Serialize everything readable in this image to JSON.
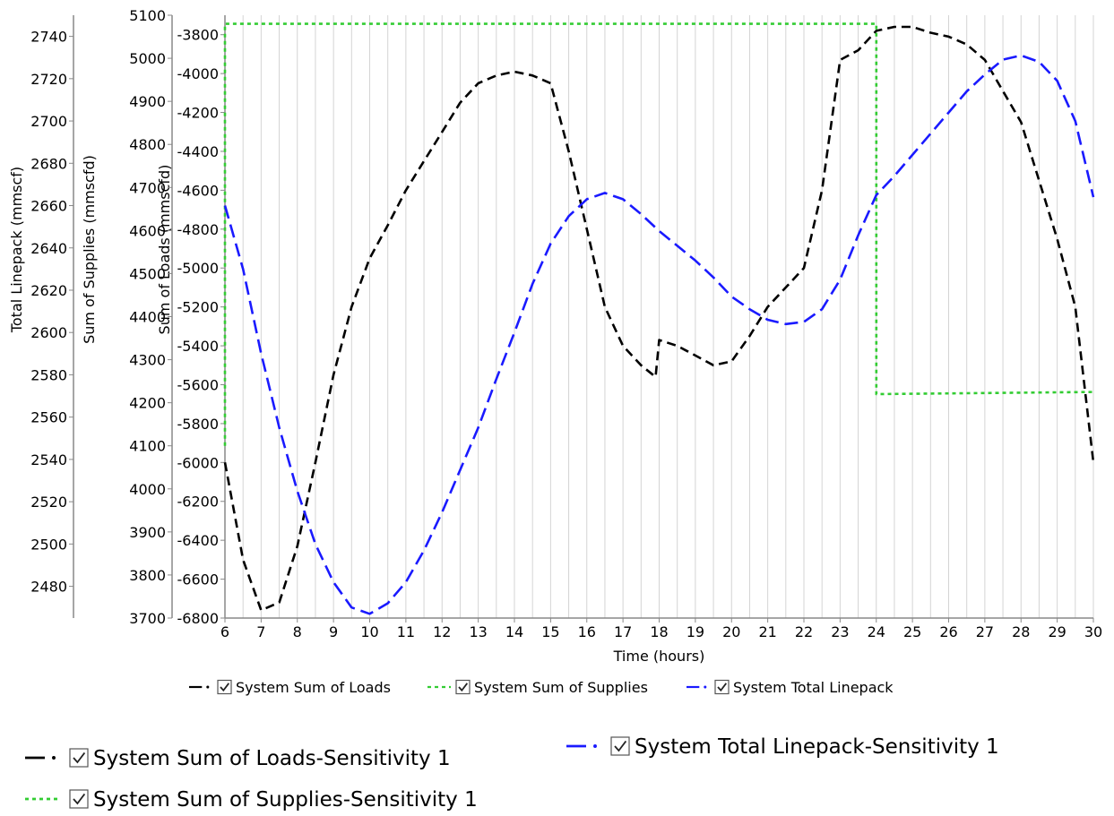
{
  "chart_data": {
    "type": "line",
    "xlabel": "Time (hours)",
    "xlim": [
      6,
      30
    ],
    "x_ticks": [
      6,
      7,
      8,
      9,
      10,
      11,
      12,
      13,
      14,
      15,
      16,
      17,
      18,
      19,
      20,
      21,
      22,
      23,
      24,
      25,
      26,
      27,
      28,
      29,
      30
    ],
    "grid": "vertical",
    "axes": {
      "loads": {
        "label": "Sum of Loads (mmscfd)",
        "min": -6800,
        "max": -3700,
        "ticks": [
          -6800,
          -6600,
          -6400,
          -6200,
          -6000,
          -5800,
          -5600,
          -5400,
          -5200,
          -5000,
          -4800,
          -4600,
          -4400,
          -4200,
          -4000,
          -3800
        ]
      },
      "supplies": {
        "label": "Sum of Supplies (mmscfd)",
        "min": 3700,
        "max": 5100,
        "ticks": [
          3700,
          3800,
          3900,
          4000,
          4100,
          4200,
          4300,
          4400,
          4500,
          4600,
          4700,
          4800,
          4900,
          5000,
          5100
        ]
      },
      "linepack": {
        "label": "Total Linepack (mmscf)",
        "min": 2465,
        "max": 2750,
        "ticks": [
          2480,
          2500,
          2520,
          2540,
          2560,
          2580,
          2600,
          2620,
          2640,
          2660,
          2680,
          2700,
          2720,
          2740
        ]
      }
    },
    "series": [
      {
        "name": "System Sum of Loads",
        "axis": "loads",
        "color": "#000000",
        "dash": "10 6",
        "x": [
          6,
          6.5,
          7,
          7.5,
          8,
          8.5,
          9,
          9.5,
          10,
          10.5,
          11,
          11.5,
          12,
          12.5,
          13,
          13.5,
          14,
          14.5,
          15,
          15.5,
          16,
          16.5,
          17,
          17.5,
          17.9,
          18,
          18.5,
          19,
          19.5,
          20,
          20.5,
          21,
          21.5,
          22,
          22.5,
          23,
          23.5,
          24,
          24.5,
          25,
          25.5,
          26,
          26.5,
          27,
          27.5,
          28,
          28.5,
          29,
          29.5,
          30
        ],
        "y": [
          -6000,
          -6500,
          -6760,
          -6720,
          -6430,
          -6000,
          -5550,
          -5200,
          -4950,
          -4780,
          -4600,
          -4450,
          -4300,
          -4150,
          -4050,
          -4010,
          -3990,
          -4010,
          -4050,
          -4400,
          -4800,
          -5200,
          -5400,
          -5500,
          -5560,
          -5370,
          -5400,
          -5450,
          -5500,
          -5480,
          -5350,
          -5200,
          -5100,
          -5000,
          -4600,
          -3930,
          -3880,
          -3780,
          -3760,
          -3760,
          -3790,
          -3810,
          -3850,
          -3930,
          -4090,
          -4250,
          -4550,
          -4850,
          -5200,
          -6000
        ]
      },
      {
        "name": "System Sum of Supplies",
        "axis": "supplies",
        "color": "#33cc33",
        "dash": "4 4",
        "x": [
          6,
          6,
          24,
          24,
          30
        ],
        "y": [
          4100,
          5080,
          5080,
          4220,
          4225
        ]
      },
      {
        "name": "System Total Linepack",
        "axis": "linepack",
        "color": "#1a1aff",
        "dash": "15 7",
        "x": [
          6,
          6.5,
          7,
          7.5,
          8,
          8.5,
          9,
          9.5,
          10,
          10.5,
          11,
          11.5,
          12,
          12.5,
          13,
          13.5,
          14,
          14.5,
          15,
          15.5,
          16,
          16.5,
          17,
          17.5,
          18,
          18.5,
          19,
          19.5,
          20,
          20.5,
          21,
          21.5,
          22,
          22.5,
          23,
          23.5,
          24,
          24.5,
          25,
          25.5,
          26,
          26.5,
          27,
          27.5,
          28,
          28.5,
          29,
          29.5,
          30
        ],
        "y": [
          2660,
          2630,
          2590,
          2555,
          2525,
          2500,
          2482,
          2470,
          2467,
          2472,
          2482,
          2497,
          2515,
          2535,
          2555,
          2578,
          2600,
          2623,
          2642,
          2655,
          2663,
          2666,
          2663,
          2656,
          2648,
          2641,
          2634,
          2626,
          2617,
          2611,
          2606,
          2604,
          2605,
          2611,
          2625,
          2646,
          2665,
          2674,
          2684,
          2694,
          2704,
          2714,
          2722,
          2729,
          2731,
          2728,
          2719,
          2700,
          2664
        ]
      }
    ],
    "legend_small": [
      {
        "label": "System Sum of Loads",
        "color": "#000000",
        "style": "dash-dot"
      },
      {
        "label": "System Sum of Supplies",
        "color": "#33cc33",
        "style": "dotted"
      },
      {
        "label": "System Total Linepack",
        "color": "#1a1aff",
        "style": "dash-dot"
      }
    ],
    "legend_large": [
      {
        "label": "System Sum of Loads-Sensitivity 1",
        "color": "#000000",
        "style": "dash-dot"
      },
      {
        "label": "System Total Linepack-Sensitivity 1",
        "color": "#1a1aff",
        "style": "dash-dot"
      },
      {
        "label": "System Sum of Supplies-Sensitivity 1",
        "color": "#33cc33",
        "style": "dotted"
      }
    ],
    "legend_checkbox_icon": "checkbox-checked-icon"
  }
}
